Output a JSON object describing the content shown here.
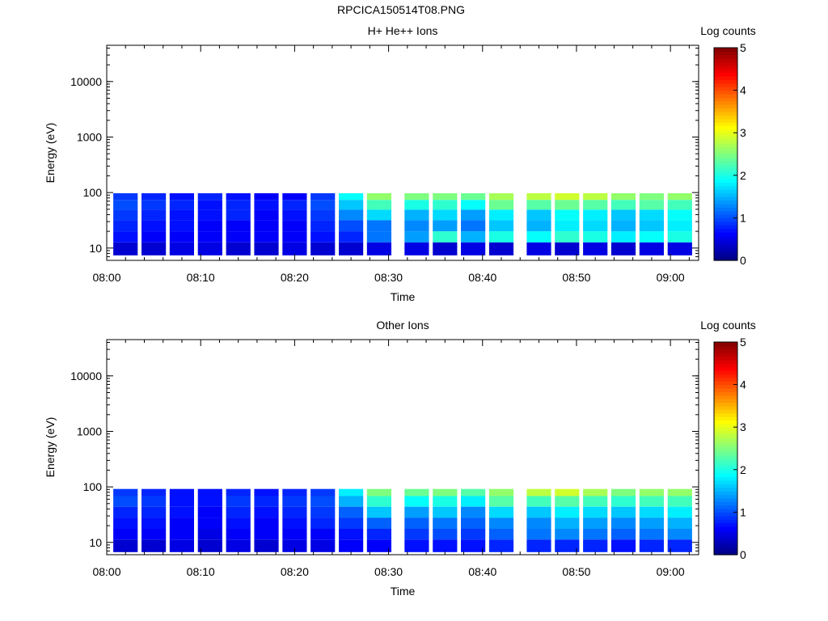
{
  "page_title": "RPCICA150514T08.PNG",
  "colors": {
    "colormap": [
      "#00007f",
      "#0000ff",
      "#007fff",
      "#00ffff",
      "#7fff7f",
      "#ffff00",
      "#ff7f00",
      "#ff0000",
      "#7f0000"
    ],
    "axis": "#000000",
    "background": "#ffffff"
  },
  "chart_data": [
    {
      "type": "heatmap",
      "title": "H+ He++ Ions",
      "xlabel": "Time",
      "ylabel": "Energy (eV)",
      "xscale": "time",
      "xlim": [
        "08:00",
        "09:03"
      ],
      "xticks": [
        "08:00",
        "08:10",
        "08:20",
        "08:30",
        "08:40",
        "08:50",
        "09:00"
      ],
      "yscale": "log",
      "ylim": [
        6,
        45000
      ],
      "yticks": [
        "10",
        "100",
        "1000",
        "10000"
      ],
      "colorbar": {
        "label": "Log counts",
        "ticks": [
          "0",
          "1",
          "2",
          "3",
          "4",
          "5"
        ],
        "range": [
          0,
          5
        ]
      },
      "time_bins": [
        "08:02",
        "08:05",
        "08:08",
        "08:11",
        "08:14",
        "08:17",
        "08:20",
        "08:23",
        "08:26",
        "08:29",
        "08:33",
        "08:36",
        "08:39",
        "08:42",
        "08:46",
        "08:49",
        "08:52",
        "08:55",
        "08:58",
        "09:01"
      ],
      "energy_bins_eV": [
        90,
        60,
        40,
        25,
        16,
        10
      ],
      "log_counts": [
        [
          0.9,
          0.8,
          0.7,
          0.8,
          0.7,
          0.6,
          0.6,
          0.9,
          1.9,
          2.6,
          2.5,
          2.5,
          2.4,
          2.7,
          2.8,
          2.9,
          2.8,
          2.6,
          2.5,
          2.6
        ],
        [
          1.0,
          0.9,
          0.8,
          0.7,
          0.8,
          0.7,
          0.8,
          1.0,
          1.6,
          2.2,
          2.0,
          2.1,
          1.9,
          2.4,
          2.3,
          2.4,
          2.3,
          2.2,
          2.3,
          2.2
        ],
        [
          0.9,
          0.8,
          0.7,
          0.7,
          0.8,
          0.6,
          0.7,
          0.9,
          1.3,
          1.7,
          1.5,
          1.7,
          1.4,
          1.8,
          1.6,
          1.9,
          1.8,
          1.6,
          1.7,
          1.9
        ],
        [
          0.8,
          0.7,
          0.7,
          0.6,
          0.6,
          0.6,
          0.6,
          0.8,
          1.0,
          1.2,
          1.3,
          1.4,
          1.2,
          1.6,
          1.5,
          1.8,
          1.7,
          1.5,
          1.6,
          1.8
        ],
        [
          0.7,
          0.6,
          0.6,
          0.6,
          0.6,
          0.6,
          0.6,
          0.7,
          0.8,
          1.2,
          1.4,
          2.1,
          1.5,
          2.0,
          1.9,
          2.1,
          2.0,
          1.8,
          1.9,
          2.0
        ],
        [
          0.4,
          0.4,
          0.5,
          0.5,
          0.4,
          0.4,
          0.5,
          0.4,
          0.4,
          0.5,
          0.5,
          0.4,
          0.5,
          0.4,
          0.5,
          0.4,
          0.5,
          0.4,
          0.5,
          0.5
        ]
      ]
    },
    {
      "type": "heatmap",
      "title": "Other Ions",
      "xlabel": "Time",
      "ylabel": "Energy (eV)",
      "xscale": "time",
      "xlim": [
        "08:00",
        "09:03"
      ],
      "xticks": [
        "08:00",
        "08:10",
        "08:20",
        "08:30",
        "08:40",
        "08:50",
        "09:00"
      ],
      "yscale": "log",
      "ylim": [
        6,
        45000
      ],
      "yticks": [
        "10",
        "100",
        "1000",
        "10000"
      ],
      "colorbar": {
        "label": "Log counts",
        "ticks": [
          "0",
          "1",
          "2",
          "3",
          "4",
          "5"
        ],
        "range": [
          0,
          5
        ]
      },
      "time_bins": [
        "08:02",
        "08:05",
        "08:08",
        "08:11",
        "08:14",
        "08:17",
        "08:20",
        "08:23",
        "08:26",
        "08:29",
        "08:33",
        "08:36",
        "08:39",
        "08:42",
        "08:46",
        "08:49",
        "08:52",
        "08:55",
        "08:58",
        "09:01"
      ],
      "energy_bins_eV": [
        85,
        55,
        35,
        22,
        14,
        9
      ],
      "log_counts": [
        [
          0.9,
          0.8,
          0.7,
          0.7,
          0.8,
          0.7,
          0.8,
          0.9,
          1.8,
          2.5,
          2.4,
          2.5,
          2.3,
          2.6,
          2.8,
          2.9,
          2.7,
          2.5,
          2.6,
          2.6
        ],
        [
          1.0,
          0.9,
          0.7,
          0.7,
          0.9,
          0.8,
          0.9,
          1.0,
          1.5,
          2.1,
          1.9,
          2.0,
          1.8,
          2.3,
          2.2,
          2.3,
          2.2,
          2.1,
          2.2,
          2.2
        ],
        [
          0.8,
          0.8,
          0.7,
          0.6,
          0.8,
          0.7,
          0.8,
          0.9,
          1.1,
          1.6,
          1.4,
          1.6,
          1.3,
          1.7,
          1.6,
          1.8,
          1.7,
          1.6,
          1.7,
          1.8
        ],
        [
          0.7,
          0.7,
          0.6,
          0.6,
          0.7,
          0.6,
          0.7,
          0.8,
          0.9,
          1.1,
          1.1,
          1.2,
          1.1,
          1.3,
          1.3,
          1.5,
          1.4,
          1.3,
          1.4,
          1.5
        ],
        [
          0.6,
          0.6,
          0.6,
          0.5,
          0.6,
          0.6,
          0.6,
          0.6,
          0.7,
          0.8,
          0.9,
          1.0,
          0.9,
          1.1,
          1.2,
          1.3,
          1.2,
          1.1,
          1.2,
          1.3
        ],
        [
          0.4,
          0.4,
          0.5,
          0.4,
          0.5,
          0.4,
          0.5,
          0.5,
          0.6,
          0.6,
          0.7,
          0.7,
          0.7,
          0.8,
          0.8,
          0.8,
          0.8,
          0.7,
          0.8,
          0.8
        ]
      ]
    }
  ]
}
